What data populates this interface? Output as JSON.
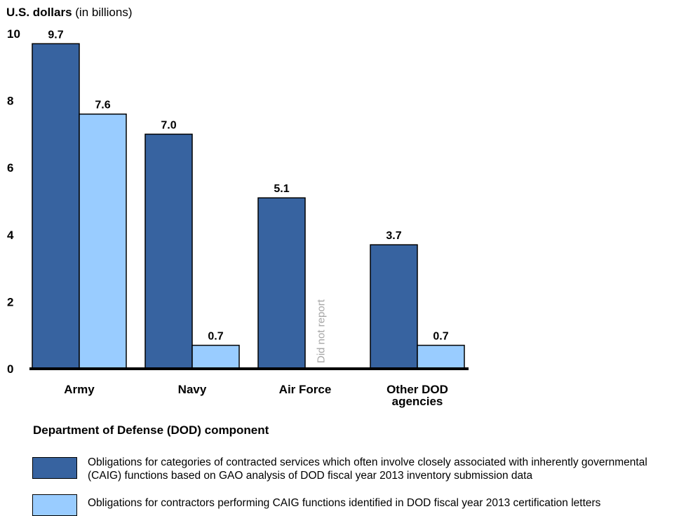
{
  "y_axis_label": {
    "bold": "U.S. dollars",
    "normal": " (in billions)"
  },
  "x_axis_title": "Department of Defense (DOD) component",
  "colors": {
    "series1": "#3763a0",
    "series2": "#99ccff",
    "axis": "#000000",
    "note": "#a6a6a6"
  },
  "legend": [
    {
      "text": "Obligations for categories of contracted services which often involve closely associated with inherently governmental (CAIG) functions based on GAO analysis of DOD fiscal year 2013 inventory submission data"
    },
    {
      "text": "Obligations for contractors performing CAIG functions identified in DOD fiscal year 2013 certification letters"
    }
  ],
  "chart_data": {
    "type": "bar",
    "categories": [
      [
        "Army"
      ],
      [
        "Navy"
      ],
      [
        "Air Force"
      ],
      [
        "Other DOD",
        "agencies"
      ]
    ],
    "series": [
      {
        "values": [
          9.7,
          7.0,
          5.1,
          3.7
        ],
        "labels": [
          "9.7",
          "7.0",
          "5.1",
          "3.7"
        ]
      },
      {
        "values": [
          7.6,
          0.7,
          null,
          0.7
        ],
        "labels": [
          "7.6",
          "0.7",
          "",
          "0.7"
        ]
      }
    ],
    "ylim": [
      0,
      10
    ],
    "yticks": [
      0,
      2,
      4,
      6,
      8,
      10
    ],
    "missing_note": "Did not report",
    "grid": false
  }
}
